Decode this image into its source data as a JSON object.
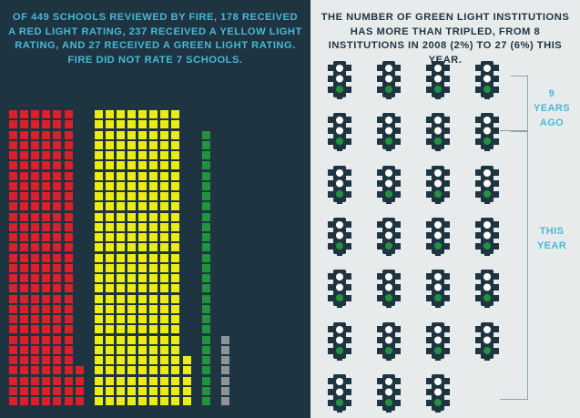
{
  "left_panel": {
    "caption": "OF 449 SCHOOLS REVIEWED BY FIRE, 178 RECEIVED A RED LIGHT RATING, 237 RECEIVED A YELLOW LIGHT RATING, AND 27 RECEIVED A GREEN LIGHT RATING. FIRE DID NOT RATE 7 SCHOOLS."
  },
  "right_panel": {
    "caption": "THE NUMBER OF GREEN LIGHT INSTITUTIONS HAS MORE THAN TRIPLED, FROM 8 INSTITUTIONS IN 2008 (2%) TO 27 (6%) THIS YEAR.",
    "label_nine_years_ago_number": "9",
    "label_nine_years_ago_text": "YEARS AGO",
    "label_this_year": "THIS YEAR"
  },
  "chart_data": [
    {
      "type": "waffle",
      "categories": [
        "Red light",
        "Yellow light",
        "Green light",
        "Not rated"
      ],
      "values": [
        178,
        237,
        27,
        7
      ],
      "total": 449,
      "colors": {
        "red": "#d9202b",
        "yellow": "#ecec15",
        "green": "#22923f",
        "not_rated": "#8a949a"
      }
    },
    {
      "type": "pictogram",
      "categories": [
        "2008",
        "This year"
      ],
      "values": [
        8,
        27
      ],
      "percents": [
        "2%",
        "6%"
      ],
      "colors": {
        "traffic_light": "#1e3440",
        "lamp": "#ffffff",
        "green_lamp": "#22923f"
      }
    }
  ]
}
